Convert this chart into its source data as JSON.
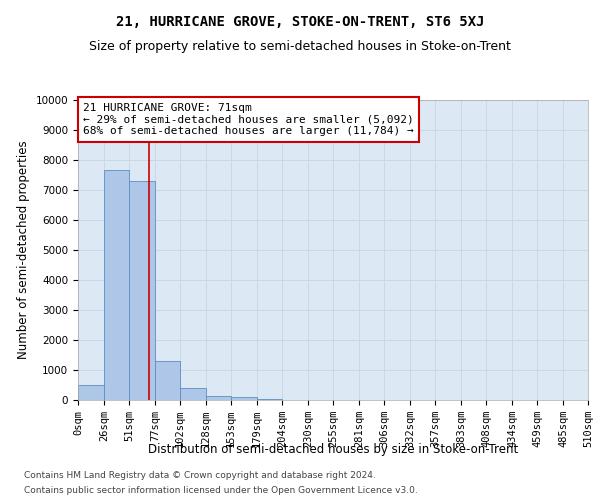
{
  "title": "21, HURRICANE GROVE, STOKE-ON-TRENT, ST6 5XJ",
  "subtitle": "Size of property relative to semi-detached houses in Stoke-on-Trent",
  "xlabel": "Distribution of semi-detached houses by size in Stoke-on-Trent",
  "ylabel": "Number of semi-detached properties",
  "footer1": "Contains HM Land Registry data © Crown copyright and database right 2024.",
  "footer2": "Contains public sector information licensed under the Open Government Licence v3.0.",
  "annotation_title": "21 HURRICANE GROVE: 71sqm",
  "annotation_line1": "← 29% of semi-detached houses are smaller (5,092)",
  "annotation_line2": "68% of semi-detached houses are larger (11,784) →",
  "property_size": 71,
  "bin_edges": [
    0,
    26,
    51,
    77,
    102,
    128,
    153,
    179,
    204,
    230,
    255,
    281,
    306,
    332,
    357,
    383,
    408,
    434,
    459,
    485,
    510
  ],
  "bar_heights": [
    500,
    7650,
    7300,
    1300,
    400,
    150,
    100,
    50,
    0,
    0,
    0,
    0,
    0,
    0,
    0,
    0,
    0,
    0,
    0,
    0
  ],
  "bar_color": "#aec6e8",
  "bar_edge_color": "#5a8fc0",
  "vline_color": "#cc0000",
  "vline_x": 71,
  "ylim": [
    0,
    10000
  ],
  "yticks": [
    0,
    1000,
    2000,
    3000,
    4000,
    5000,
    6000,
    7000,
    8000,
    9000,
    10000
  ],
  "grid_color": "#c8d8e8",
  "bg_color": "#dce9f5",
  "annotation_box_color": "#cc0000",
  "title_fontsize": 10,
  "subtitle_fontsize": 9,
  "axis_label_fontsize": 8.5,
  "tick_fontsize": 7.5,
  "annotation_fontsize": 8,
  "footer_fontsize": 6.5
}
